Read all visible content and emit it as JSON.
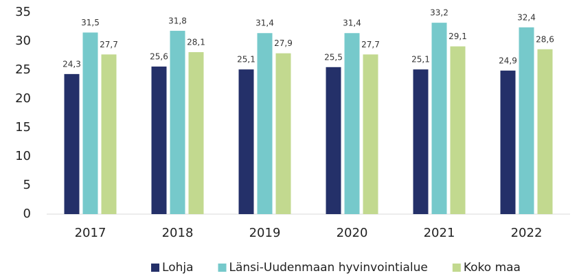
{
  "chart_data": {
    "type": "bar",
    "categories": [
      "2017",
      "2018",
      "2019",
      "2020",
      "2021",
      "2022"
    ],
    "series": [
      {
        "name": "Lohja",
        "color": "#243069",
        "values": [
          24.3,
          25.6,
          25.1,
          25.5,
          25.1,
          24.9
        ],
        "value_labels": [
          "24,3",
          "25,6",
          "25,1",
          "25,5",
          "25,1",
          "24,9"
        ]
      },
      {
        "name": "Länsi-Uudenmaan hyvinvointialue",
        "color": "#76c9cb",
        "values": [
          31.5,
          31.8,
          31.4,
          31.4,
          33.2,
          32.4
        ],
        "value_labels": [
          "31,5",
          "31,8",
          "31,4",
          "31,4",
          "33,2",
          "32,4"
        ]
      },
      {
        "name": "Koko maa",
        "color": "#c2d98f",
        "values": [
          27.7,
          28.1,
          27.9,
          27.7,
          29.1,
          28.6
        ],
        "value_labels": [
          "27,7",
          "28,1",
          "27,9",
          "27,7",
          "29,1",
          "28,6"
        ]
      }
    ],
    "ylim": [
      0,
      35
    ],
    "yticks": [
      0,
      5,
      10,
      15,
      20,
      25,
      30,
      35
    ],
    "grid": false,
    "legend": "bottom"
  }
}
